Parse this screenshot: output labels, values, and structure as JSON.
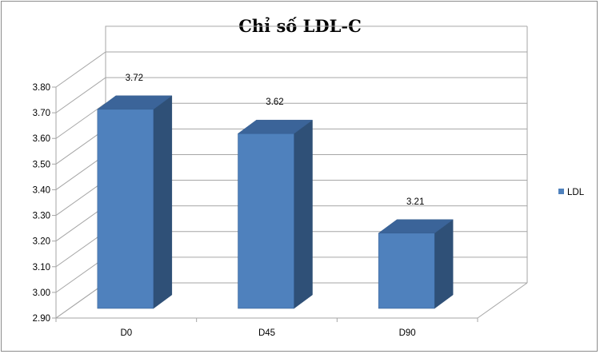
{
  "chart_data": {
    "type": "bar",
    "title": "Chỉ số LDL-C",
    "categories": [
      "D0",
      "D45",
      "D90"
    ],
    "series": [
      {
        "name": "LDL",
        "values": [
          3.72,
          3.62,
          3.21
        ]
      }
    ],
    "ylim": [
      2.9,
      3.8
    ],
    "yticks": [
      "2.90",
      "3.00",
      "3.10",
      "3.20",
      "3.30",
      "3.40",
      "3.50",
      "3.60",
      "3.70",
      "3.80"
    ],
    "data_labels": [
      "3.72",
      "3.62",
      "3.21"
    ],
    "three_d": true,
    "grid": true,
    "legend": "right",
    "colors": {
      "front": "#4f81bd",
      "side": "#2f5077",
      "top": "#3b6499",
      "edge": "#355d8f",
      "grid": "#a6a6a6"
    }
  }
}
